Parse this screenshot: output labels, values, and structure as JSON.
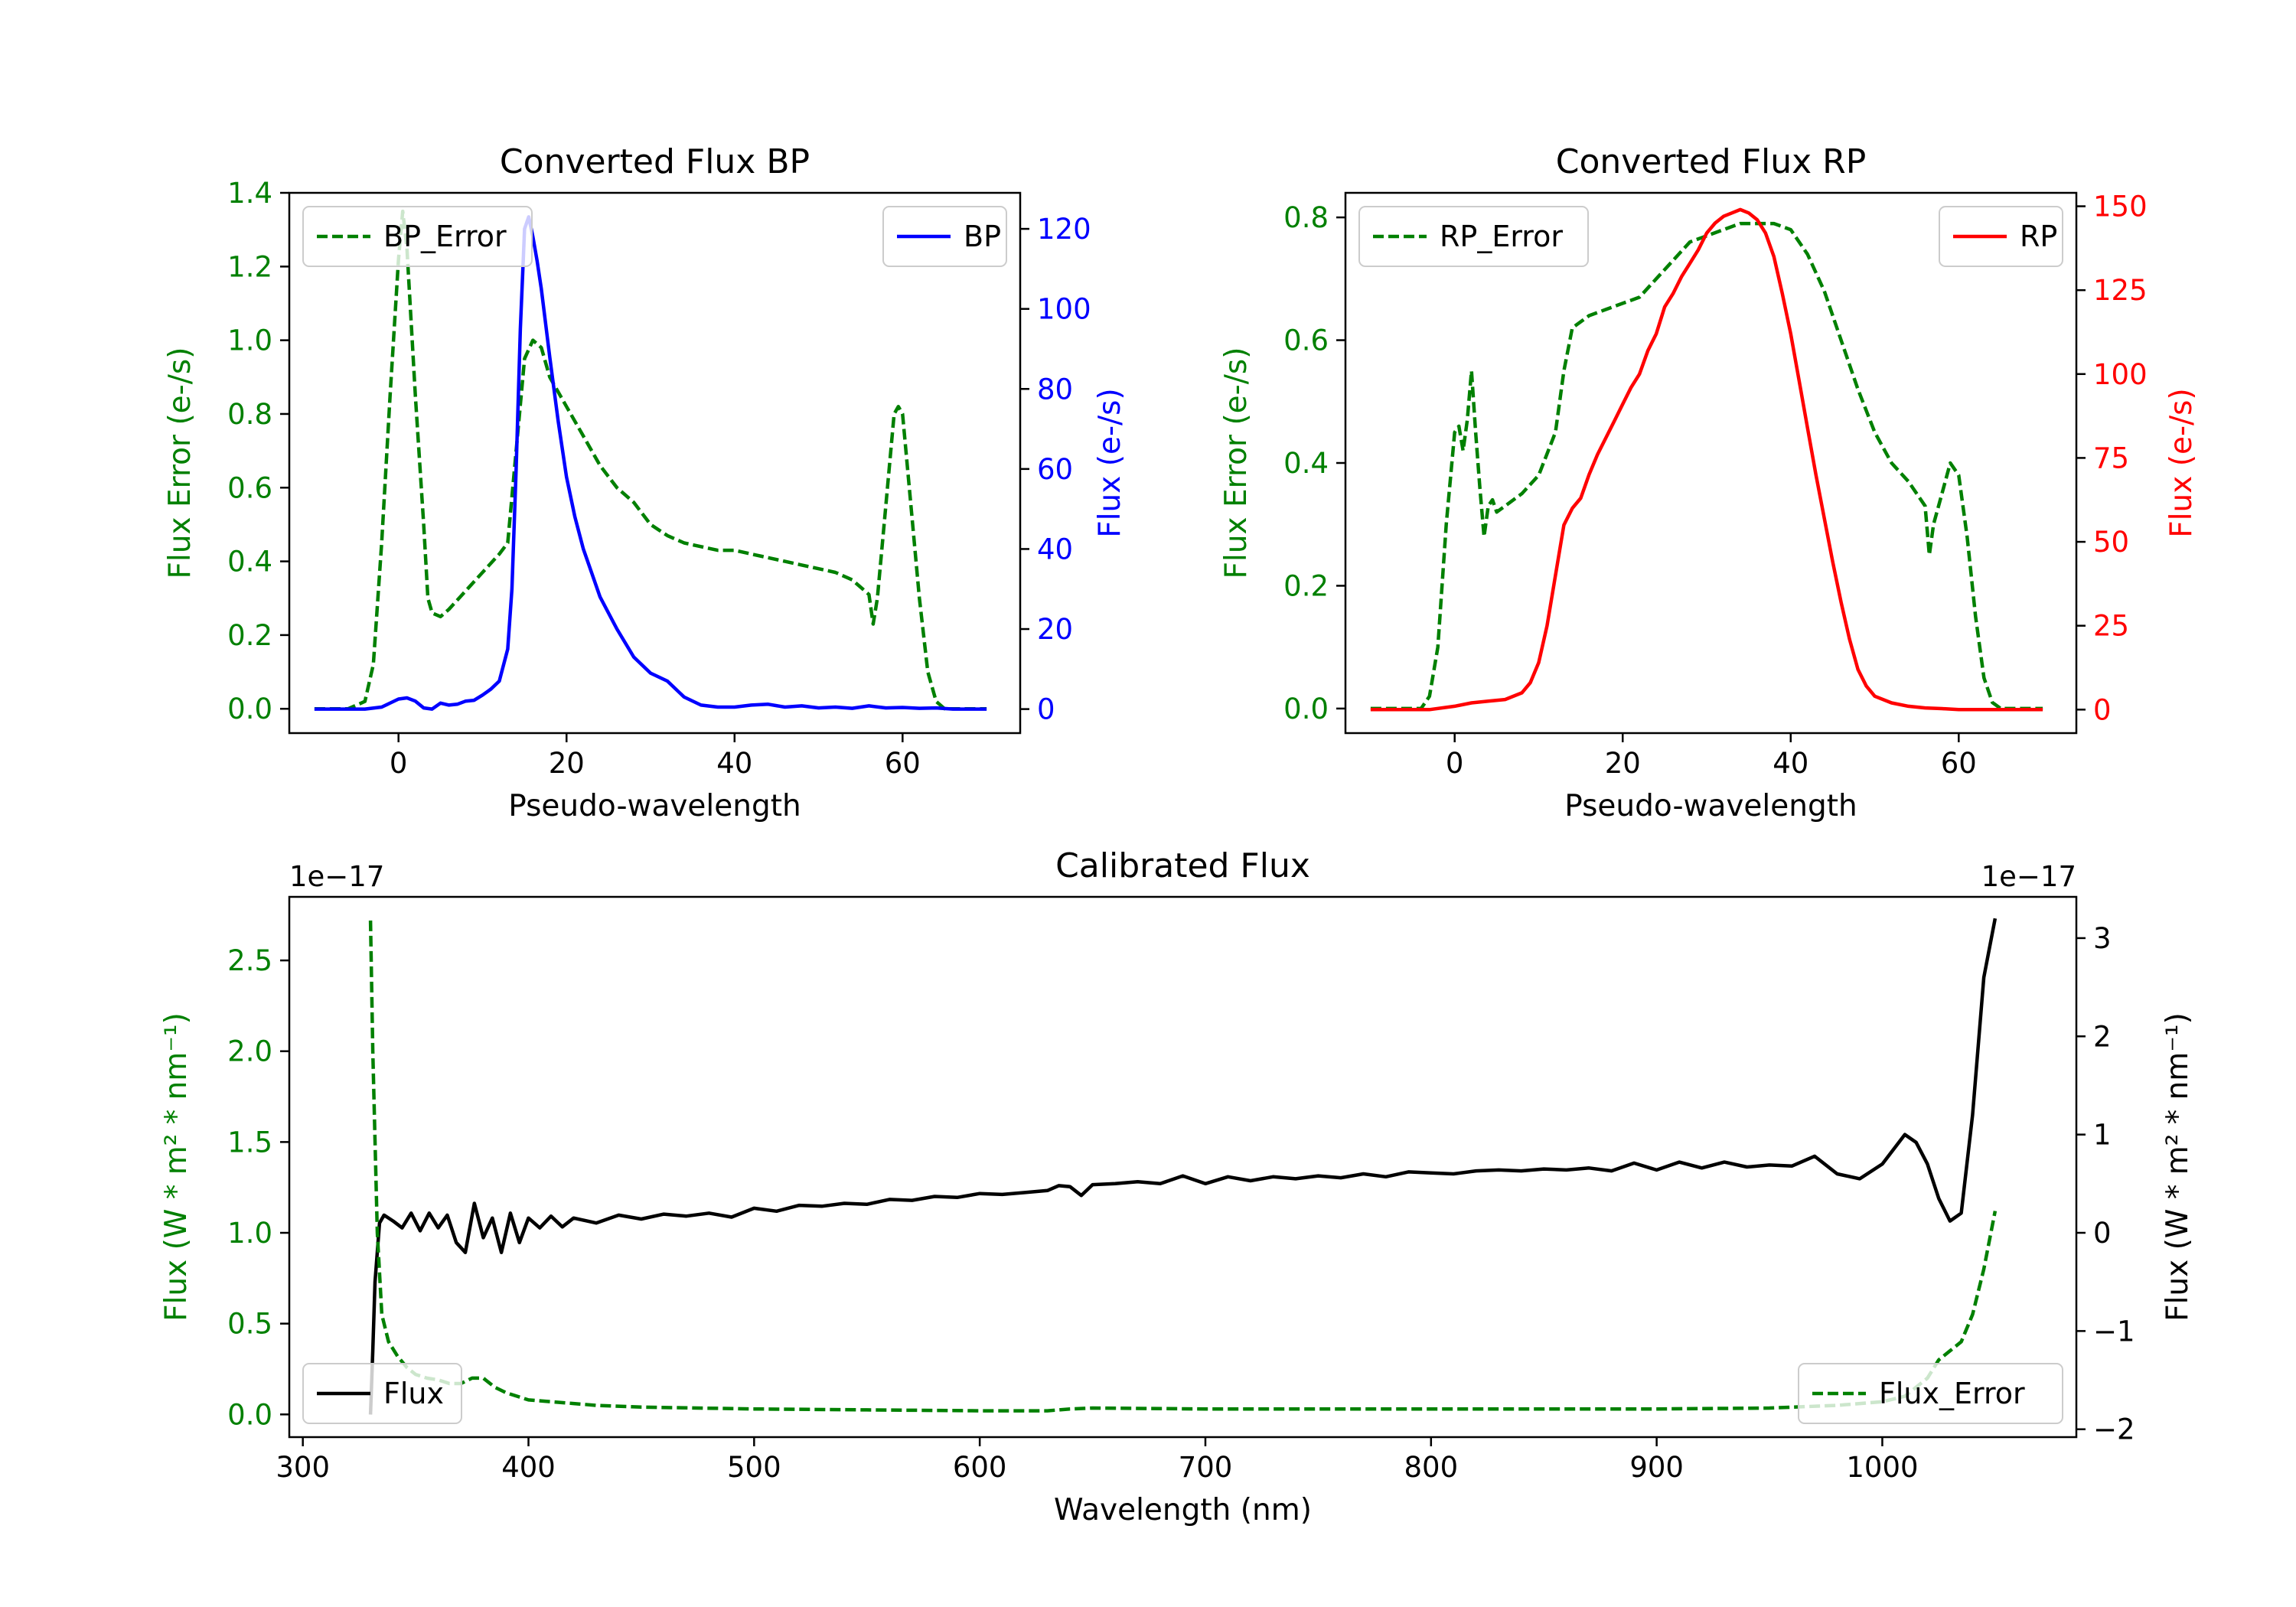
{
  "chart_data": [
    {
      "type": "line",
      "title": "Converted Flux BP",
      "xlabel": "Pseudo-wavelength",
      "xlim": [
        -13,
        74
      ],
      "xticks": [
        0,
        20,
        40,
        60
      ],
      "left_axis": {
        "label": "Flux Error (e-/s)",
        "color": "#008000",
        "ylim": [
          -0.066,
          1.4
        ],
        "ticks": [
          0.0,
          0.2,
          0.4,
          0.6,
          0.8,
          1.0,
          1.2,
          1.4
        ],
        "tick_labels": [
          "0.0",
          "0.2",
          "0.4",
          "0.6",
          "0.8",
          "1.0",
          "1.2",
          "1.4"
        ]
      },
      "right_axis": {
        "label": "Flux (e-/s)",
        "color": "#0000ff",
        "ylim": [
          -6,
          129
        ],
        "ticks": [
          0,
          20,
          40,
          60,
          80,
          100,
          120
        ],
        "tick_labels": [
          "0",
          "20",
          "40",
          "60",
          "80",
          "100",
          "120"
        ]
      },
      "series": [
        {
          "name": "BP_Error",
          "axis": "left",
          "color": "#008000",
          "dashed": true,
          "legend": "top-left",
          "x": [
            -10,
            -6,
            -4,
            -3,
            -2,
            -1,
            0,
            0.5,
            1,
            2,
            3,
            3.5,
            4,
            5,
            6,
            8,
            10,
            12,
            13,
            14,
            15,
            16,
            17,
            18,
            20,
            22,
            24,
            26,
            28,
            30,
            32,
            34,
            36,
            38,
            40,
            42,
            44,
            46,
            48,
            50,
            52,
            54,
            56,
            56.5,
            57,
            58,
            59,
            59.5,
            60,
            61,
            62,
            63,
            64,
            65,
            66,
            68,
            70
          ],
          "y": [
            0.0,
            0.0,
            0.02,
            0.12,
            0.45,
            0.85,
            1.22,
            1.35,
            1.25,
            0.85,
            0.5,
            0.3,
            0.26,
            0.25,
            0.27,
            0.32,
            0.37,
            0.42,
            0.45,
            0.7,
            0.95,
            1.0,
            0.98,
            0.9,
            0.82,
            0.74,
            0.66,
            0.6,
            0.56,
            0.5,
            0.47,
            0.45,
            0.44,
            0.43,
            0.43,
            0.42,
            0.41,
            0.4,
            0.39,
            0.38,
            0.37,
            0.35,
            0.31,
            0.23,
            0.3,
            0.55,
            0.8,
            0.82,
            0.8,
            0.55,
            0.3,
            0.1,
            0.02,
            0.0,
            0.0,
            0.0,
            0.0
          ]
        },
        {
          "name": "BP",
          "axis": "right",
          "color": "#0000ff",
          "dashed": false,
          "legend": "top-right",
          "x": [
            -10,
            -6,
            -4,
            -2,
            0,
            1,
            2,
            3,
            4,
            5,
            6,
            7,
            8,
            9,
            10,
            11,
            12,
            13,
            13.5,
            14,
            14.5,
            15,
            15.5,
            16,
            16.5,
            17,
            18,
            19,
            20,
            21,
            22,
            24,
            26,
            28,
            30,
            32,
            34,
            36,
            38,
            40,
            42,
            44,
            46,
            48,
            50,
            52,
            54,
            56,
            58,
            60,
            62,
            64,
            66,
            68,
            70
          ],
          "y": [
            0,
            0,
            0,
            0.5,
            2.5,
            2.8,
            2.0,
            0.3,
            0,
            1.5,
            1.0,
            1.2,
            2.0,
            2.2,
            3.5,
            5.0,
            7,
            15,
            30,
            60,
            95,
            120,
            123,
            118,
            112,
            105,
            88,
            72,
            58,
            48,
            40,
            28,
            20,
            13,
            9,
            7,
            3,
            1,
            0.5,
            0.5,
            1,
            1.2,
            0.5,
            0.8,
            0.3,
            0.5,
            0.2,
            0.8,
            0.3,
            0.4,
            0.2,
            0.3,
            0,
            0,
            0
          ]
        }
      ]
    },
    {
      "type": "line",
      "title": "Converted Flux RP",
      "xlabel": "Pseudo-wavelength",
      "xlim": [
        -13,
        74
      ],
      "xticks": [
        0,
        20,
        40,
        60
      ],
      "left_axis": {
        "label": "Flux Error (e-/s)",
        "color": "#008000",
        "ylim": [
          -0.04,
          0.84
        ],
        "ticks": [
          0.0,
          0.2,
          0.4,
          0.6,
          0.8
        ],
        "tick_labels": [
          "0.0",
          "0.2",
          "0.4",
          "0.6",
          "0.8"
        ]
      },
      "right_axis": {
        "label": "Flux (e-/s)",
        "color": "#ff0000",
        "ylim": [
          -7,
          154
        ],
        "ticks": [
          0,
          25,
          50,
          75,
          100,
          125,
          150
        ],
        "tick_labels": [
          "0",
          "25",
          "50",
          "75",
          "100",
          "125",
          "150"
        ]
      },
      "series": [
        {
          "name": "RP_Error",
          "axis": "left",
          "color": "#008000",
          "dashed": true,
          "legend": "top-left",
          "x": [
            -10,
            -6,
            -4,
            -3,
            -2,
            -1,
            0,
            0.5,
            1,
            1.5,
            2,
            2.5,
            3,
            3.5,
            4,
            4.5,
            5,
            6,
            8,
            10,
            12,
            13,
            14,
            16,
            18,
            20,
            22,
            24,
            26,
            28,
            30,
            32,
            34,
            36,
            38,
            40,
            42,
            44,
            46,
            48,
            50,
            52,
            54,
            56,
            56.5,
            57,
            58,
            59,
            60,
            61,
            62,
            63,
            64,
            65,
            66,
            68,
            70
          ],
          "y": [
            0.0,
            0.0,
            0.0,
            0.02,
            0.1,
            0.3,
            0.45,
            0.46,
            0.42,
            0.47,
            0.55,
            0.45,
            0.36,
            0.28,
            0.33,
            0.34,
            0.32,
            0.33,
            0.35,
            0.38,
            0.45,
            0.55,
            0.62,
            0.64,
            0.65,
            0.66,
            0.67,
            0.7,
            0.73,
            0.76,
            0.77,
            0.78,
            0.79,
            0.79,
            0.79,
            0.78,
            0.74,
            0.68,
            0.6,
            0.52,
            0.45,
            0.4,
            0.37,
            0.33,
            0.25,
            0.3,
            0.35,
            0.4,
            0.38,
            0.28,
            0.15,
            0.05,
            0.01,
            0.0,
            0.0,
            0.0,
            0.0
          ]
        },
        {
          "name": "RP",
          "axis": "right",
          "color": "#ff0000",
          "dashed": false,
          "legend": "top-right",
          "x": [
            -10,
            -6,
            -3,
            0,
            2,
            4,
            6,
            8,
            9,
            10,
            11,
            12,
            13,
            14,
            15,
            16,
            17,
            18,
            19,
            20,
            21,
            22,
            23,
            24,
            25,
            26,
            27,
            28,
            29,
            30,
            31,
            32,
            33,
            34,
            35,
            36,
            37,
            38,
            39,
            40,
            41,
            42,
            43,
            44,
            45,
            46,
            47,
            48,
            49,
            50,
            52,
            54,
            56,
            58,
            60,
            62,
            64,
            66,
            68,
            70
          ],
          "y": [
            0,
            0,
            0,
            1,
            2,
            2.5,
            3,
            5,
            8,
            14,
            25,
            40,
            55,
            60,
            63,
            70,
            76,
            81,
            86,
            91,
            96,
            100,
            107,
            112,
            120,
            124,
            129,
            133,
            137,
            142,
            145,
            147,
            148,
            149,
            148,
            146,
            142,
            135,
            124,
            112,
            98,
            84,
            70,
            57,
            44,
            32,
            21,
            12,
            7,
            4,
            2,
            1,
            0.5,
            0.3,
            0,
            0,
            0,
            0,
            0,
            0
          ]
        }
      ]
    },
    {
      "type": "line",
      "title": "Calibrated Flux",
      "xlabel": "Wavelength (nm)",
      "xlim": [
        294,
        1086
      ],
      "xticks": [
        300,
        400,
        500,
        600,
        700,
        800,
        900,
        1000
      ],
      "left_axis": {
        "label": "Flux (W * m² * nm⁻¹)",
        "color": "#008000",
        "offset_text": "1e−17",
        "ylim": [
          -0.125,
          2.85
        ],
        "ticks": [
          0.0,
          0.5,
          1.0,
          1.5,
          2.0,
          2.5
        ],
        "tick_labels": [
          "0.0",
          "0.5",
          "1.0",
          "1.5",
          "2.0",
          "2.5"
        ]
      },
      "right_axis": {
        "label": "Flux (W * m² * nm⁻¹)",
        "color": "#000000",
        "offset_text": "1e−17",
        "ylim": [
          -2.08,
          3.42
        ],
        "ticks": [
          -2,
          -1,
          0,
          1,
          2,
          3
        ],
        "tick_labels": [
          "−2",
          "−1",
          "0",
          "1",
          "2",
          "3"
        ]
      },
      "series": [
        {
          "name": "Flux",
          "axis": "right",
          "color": "#000000",
          "dashed": false,
          "legend": "lower-left",
          "x": [
            330,
            331,
            332,
            334,
            336,
            340,
            344,
            348,
            352,
            356,
            360,
            364,
            368,
            372,
            376,
            380,
            384,
            388,
            392,
            396,
            400,
            405,
            410,
            415,
            420,
            430,
            440,
            450,
            460,
            470,
            480,
            490,
            500,
            510,
            520,
            530,
            540,
            550,
            560,
            570,
            580,
            590,
            600,
            610,
            620,
            630,
            635,
            640,
            645,
            650,
            660,
            670,
            680,
            690,
            700,
            710,
            720,
            730,
            740,
            750,
            760,
            770,
            780,
            790,
            800,
            810,
            820,
            830,
            840,
            850,
            860,
            870,
            880,
            890,
            900,
            910,
            920,
            930,
            940,
            950,
            960,
            970,
            980,
            990,
            1000,
            1010,
            1015,
            1020,
            1025,
            1030,
            1035,
            1040,
            1045,
            1050
          ],
          "y": [
            -1.85,
            -1.2,
            -0.5,
            0.1,
            0.18,
            0.12,
            0.05,
            0.2,
            0.02,
            0.2,
            0.05,
            0.18,
            -0.1,
            -0.2,
            0.3,
            -0.05,
            0.15,
            -0.2,
            0.2,
            -0.1,
            0.15,
            0.05,
            0.17,
            0.06,
            0.15,
            0.1,
            0.18,
            0.14,
            0.19,
            0.17,
            0.2,
            0.16,
            0.25,
            0.22,
            0.28,
            0.27,
            0.3,
            0.29,
            0.34,
            0.33,
            0.37,
            0.36,
            0.4,
            0.39,
            0.41,
            0.43,
            0.48,
            0.47,
            0.38,
            0.49,
            0.5,
            0.52,
            0.5,
            0.58,
            0.5,
            0.57,
            0.53,
            0.57,
            0.55,
            0.58,
            0.56,
            0.6,
            0.57,
            0.62,
            0.61,
            0.6,
            0.63,
            0.64,
            0.63,
            0.65,
            0.64,
            0.66,
            0.63,
            0.71,
            0.64,
            0.72,
            0.66,
            0.72,
            0.67,
            0.69,
            0.68,
            0.78,
            0.6,
            0.55,
            0.7,
            1.0,
            0.92,
            0.7,
            0.35,
            0.12,
            0.2,
            1.2,
            2.6,
            3.2
          ]
        },
        {
          "name": "Flux_Error",
          "axis": "left",
          "color": "#008000",
          "dashed": true,
          "legend": "lower-right",
          "x": [
            330,
            331,
            333,
            335,
            338,
            342,
            346,
            350,
            355,
            360,
            365,
            370,
            375,
            380,
            385,
            390,
            395,
            400,
            410,
            420,
            430,
            450,
            500,
            550,
            600,
            630,
            640,
            650,
            700,
            800,
            900,
            950,
            980,
            1000,
            1010,
            1020,
            1025,
            1030,
            1035,
            1040,
            1045,
            1050
          ],
          "y": [
            2.72,
            2.0,
            1.0,
            0.55,
            0.4,
            0.32,
            0.26,
            0.22,
            0.2,
            0.19,
            0.17,
            0.17,
            0.2,
            0.2,
            0.15,
            0.12,
            0.1,
            0.08,
            0.07,
            0.06,
            0.05,
            0.04,
            0.03,
            0.025,
            0.02,
            0.02,
            0.03,
            0.035,
            0.03,
            0.03,
            0.03,
            0.035,
            0.05,
            0.07,
            0.1,
            0.2,
            0.3,
            0.35,
            0.4,
            0.55,
            0.8,
            1.12
          ]
        }
      ]
    }
  ]
}
